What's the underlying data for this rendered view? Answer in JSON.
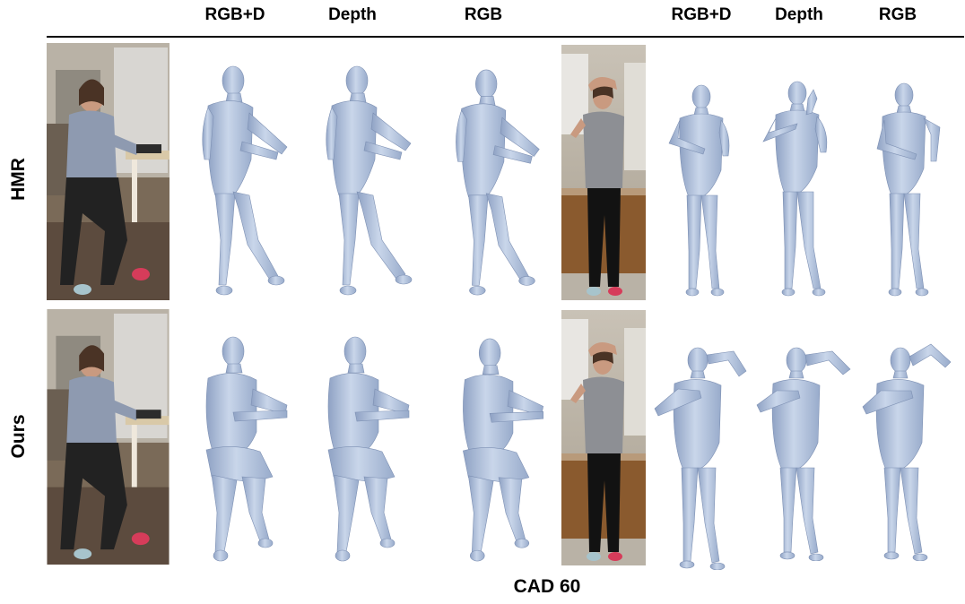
{
  "column_headers": [
    "RGB+D",
    "Depth",
    "RGB",
    "RGB+D",
    "Depth",
    "RGB"
  ],
  "row_labels": [
    "HMR",
    "Ours"
  ],
  "caption": "CAD 60",
  "colors": {
    "mesh": "#b4c5e0",
    "mesh_shadow": "#8ea1c2",
    "text": "#000000"
  }
}
